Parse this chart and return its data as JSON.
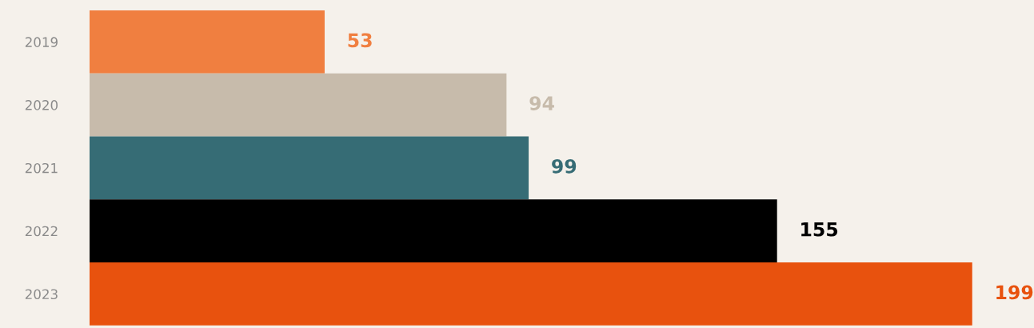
{
  "chart_data": {
    "type": "bar",
    "orientation": "horizontal",
    "categories": [
      "2019",
      "2020",
      "2021",
      "2022",
      "2023"
    ],
    "values": [
      53,
      94,
      99,
      155,
      199
    ],
    "colors": [
      "#f07f40",
      "#c7bbab",
      "#366c75",
      "#000000",
      "#e8520e"
    ],
    "data_labels": true,
    "grid": false,
    "legend": false
  }
}
